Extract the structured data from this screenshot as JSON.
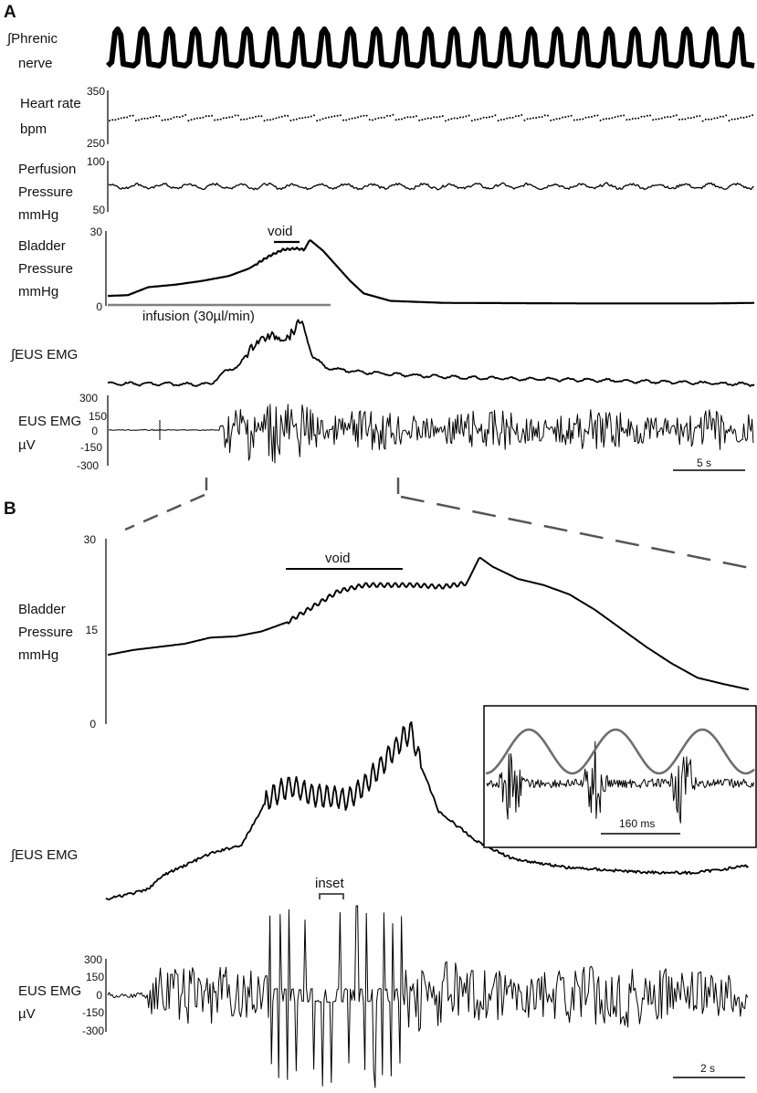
{
  "panels": {
    "a": "A",
    "b": "B"
  },
  "panel_a": {
    "phrenic_label": [
      "∫Phrenic",
      "nerve"
    ],
    "hr_label": [
      "Heart rate",
      "bpm"
    ],
    "hr_ticks": [
      "350",
      "250"
    ],
    "perf_label": [
      "Perfusion",
      "Pressure",
      "mmHg"
    ],
    "perf_ticks": [
      "100",
      "50"
    ],
    "bladder_label": [
      "Bladder",
      "Pressure",
      "mmHg"
    ],
    "bladder_ticks": [
      "30",
      "0"
    ],
    "void_label": "void",
    "infusion_label": "infusion (30µl/min)",
    "ieus_label": "∫EUS EMG",
    "eus_label": [
      "EUS EMG",
      "µV"
    ],
    "eus_ticks": [
      "300",
      "150",
      "0",
      "-150",
      "-300"
    ],
    "scalebar": "5 s"
  },
  "panel_b": {
    "bladder_label": [
      "Bladder",
      "Pressure",
      "mmHg"
    ],
    "bladder_ticks": [
      "30",
      "15",
      "0"
    ],
    "void_label": "void",
    "ieus_label": "∫EUS EMG",
    "inset_label": "inset",
    "inset_scalebar": "160 ms",
    "eus_label": [
      "EUS EMG",
      "µV"
    ],
    "eus_ticks": [
      "300",
      "150",
      "0",
      "-150",
      "-300"
    ],
    "scalebar": "2 s"
  },
  "colors": {
    "trace": "#000000",
    "infusion_bar": "#808080",
    "inset_overlay": "#6e6e6e",
    "dashed_guides": "#555555"
  },
  "chart_data": [
    {
      "type": "line",
      "id": "A-phrenic",
      "series": [
        {
          "name": "∫Phrenic nerve",
          "bursts": 25
        }
      ]
    },
    {
      "type": "scatter",
      "id": "A-heart-rate",
      "ylabel": "Heart rate bpm",
      "ylim": [
        250,
        350
      ],
      "series": [
        {
          "name": "Heart rate",
          "mean": 300,
          "range": [
            292,
            305
          ]
        }
      ]
    },
    {
      "type": "line",
      "id": "A-perfusion",
      "ylabel": "Perfusion Pressure mmHg",
      "ylim": [
        50,
        100
      ],
      "series": [
        {
          "name": "Perfusion Pressure",
          "mean": 75,
          "range": [
            72,
            78
          ]
        }
      ]
    },
    {
      "type": "line",
      "id": "A-bladder",
      "ylabel": "Bladder Pressure mmHg",
      "ylim": [
        0,
        30
      ],
      "xlabel_unit": "s",
      "x": [
        0,
        1.5,
        3,
        5,
        7,
        9,
        10.5,
        12,
        13,
        14,
        14.6,
        15,
        16,
        17,
        18,
        19,
        21,
        25,
        35,
        45,
        48
      ],
      "y": [
        4,
        4.3,
        7.5,
        8.5,
        10,
        12,
        15,
        20,
        22.5,
        23,
        22.5,
        26.5,
        22,
        16,
        10,
        5,
        2,
        1.2,
        1,
        1,
        1.2
      ],
      "annotations": {
        "void": [
          12.6,
          14.6
        ],
        "infusion": [
          0,
          17.5
        ]
      }
    },
    {
      "type": "line",
      "id": "A-integrated-eus",
      "series": [
        {
          "name": "∫EUS EMG"
        }
      ]
    },
    {
      "type": "line",
      "id": "A-eus-emg",
      "ylabel": "EUS EMG µV",
      "ylim": [
        -300,
        300
      ],
      "series": [
        {
          "name": "EUS EMG",
          "active_from_s": 7.5,
          "peak_uV": 300
        }
      ]
    },
    {
      "type": "line",
      "id": "B-bladder",
      "ylabel": "Bladder Pressure mmHg",
      "ylim": [
        0,
        30
      ],
      "xlabel_unit": "s",
      "x": [
        0,
        1,
        2,
        3,
        4,
        5,
        6,
        7,
        8,
        9,
        10,
        11,
        12,
        13,
        14,
        14.5,
        15,
        16,
        17,
        18,
        19,
        20,
        21,
        22,
        23,
        24,
        25
      ],
      "y": [
        11.2,
        12,
        12.5,
        13,
        14,
        14.2,
        15,
        16.5,
        19,
        21.5,
        22.5,
        22.5,
        22.5,
        22.2,
        22.8,
        27,
        25.5,
        23.5,
        22.5,
        21,
        18.5,
        15.5,
        12.5,
        9.8,
        7.5,
        6.5,
        5.6
      ],
      "annotations": {
        "void": [
          8,
          13.5
        ]
      }
    },
    {
      "type": "line",
      "id": "B-integrated-eus",
      "series": [
        {
          "name": "∫EUS EMG"
        }
      ]
    },
    {
      "type": "line",
      "id": "B-eus-emg",
      "ylabel": "EUS EMG µV",
      "ylim": [
        -300,
        300
      ],
      "series": [
        {
          "name": "EUS EMG",
          "active_from_s": 1.7,
          "peak_uV": 400
        }
      ],
      "annotations": {
        "inset": [
          6,
          7
        ]
      }
    }
  ]
}
